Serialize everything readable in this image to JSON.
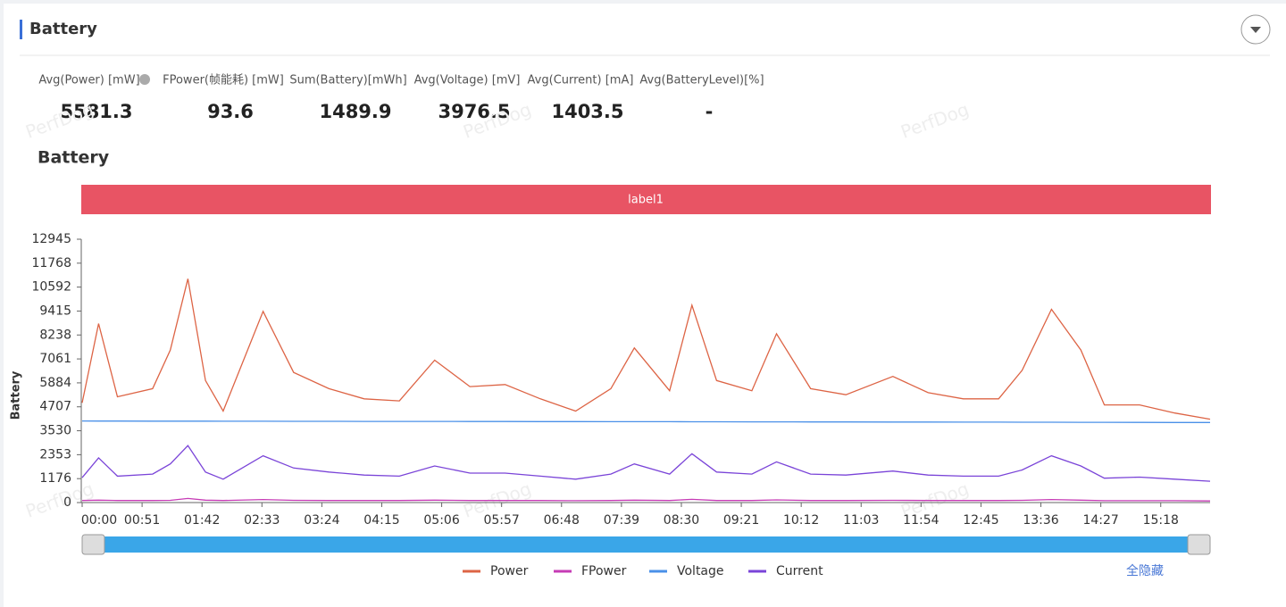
{
  "header": {
    "title": "Battery"
  },
  "stats": [
    {
      "label": "Avg(Power) [mW]",
      "value": 5581.3
    },
    {
      "label": "FPower(帧能耗) [mW]",
      "value": 93.6
    },
    {
      "label": "Sum(Battery)[mWh]",
      "value": 1489.9
    },
    {
      "label": "Avg(Voltage) [mV]",
      "value": 3976.5
    },
    {
      "label": "Avg(Current) [mA]",
      "value": 1403.5
    },
    {
      "label": "Avg(BatteryLevel)[%]",
      "value": "-"
    }
  ],
  "watermark": "PerfDog",
  "hide_all": "全隐藏",
  "chart_data": {
    "type": "line",
    "title": "Battery",
    "band_label": "label1",
    "ylabel": "Battery",
    "xlim": [
      0,
      960
    ],
    "xticks": [
      {
        "value": 0,
        "label": "00:00"
      },
      {
        "value": 51,
        "label": "00:51"
      },
      {
        "value": 102,
        "label": "01:42"
      },
      {
        "value": 153,
        "label": "02:33"
      },
      {
        "value": 204,
        "label": "03:24"
      },
      {
        "value": 255,
        "label": "04:15"
      },
      {
        "value": 306,
        "label": "05:06"
      },
      {
        "value": 357,
        "label": "05:57"
      },
      {
        "value": 408,
        "label": "06:48"
      },
      {
        "value": 459,
        "label": "07:39"
      },
      {
        "value": 510,
        "label": "08:30"
      },
      {
        "value": 561,
        "label": "09:21"
      },
      {
        "value": 612,
        "label": "10:12"
      },
      {
        "value": 663,
        "label": "11:03"
      },
      {
        "value": 714,
        "label": "11:54"
      },
      {
        "value": 765,
        "label": "12:45"
      },
      {
        "value": 816,
        "label": "13:36"
      },
      {
        "value": 867,
        "label": "14:27"
      },
      {
        "value": 918,
        "label": "15:18"
      }
    ],
    "ylim": [
      0,
      12945
    ],
    "yticks": [
      0,
      1176,
      2353,
      3530,
      4707,
      5884,
      7061,
      8238,
      9415,
      10592,
      11768,
      12945
    ],
    "x": [
      0,
      14,
      30,
      60,
      75,
      90,
      105,
      120,
      154,
      180,
      210,
      240,
      270,
      300,
      330,
      360,
      390,
      420,
      450,
      470,
      500,
      519,
      540,
      570,
      591,
      620,
      650,
      690,
      720,
      750,
      780,
      800,
      825,
      850,
      870,
      900,
      930,
      960
    ],
    "series": [
      {
        "name": "Power",
        "color": "#dd6445",
        "values": [
          4900,
          8800,
          5200,
          5600,
          7500,
          11000,
          6000,
          4500,
          9400,
          6400,
          5600,
          5100,
          5000,
          7000,
          5700,
          5800,
          5100,
          4500,
          5600,
          7600,
          5500,
          9700,
          6000,
          5500,
          8300,
          5600,
          5300,
          6200,
          5400,
          5100,
          5100,
          6500,
          9500,
          7500,
          4800,
          4800,
          4400,
          4100
        ]
      },
      {
        "name": "FPower",
        "color": "#c63bb5",
        "values": [
          100,
          120,
          100,
          100,
          110,
          200,
          120,
          100,
          150,
          110,
          100,
          100,
          100,
          120,
          100,
          100,
          100,
          90,
          100,
          120,
          100,
          160,
          100,
          100,
          130,
          100,
          100,
          110,
          100,
          100,
          100,
          110,
          150,
          120,
          90,
          90,
          90,
          80
        ]
      },
      {
        "name": "Voltage",
        "color": "#4a90e8",
        "values": [
          4010,
          4008,
          4006,
          4004,
          4003,
          4002,
          4000,
          3999,
          3997,
          3995,
          3993,
          3991,
          3989,
          3987,
          3985,
          3983,
          3981,
          3979,
          3977,
          3976,
          3974,
          3972,
          3970,
          3968,
          3966,
          3964,
          3962,
          3959,
          3957,
          3955,
          3953,
          3951,
          3949,
          3947,
          3945,
          3942,
          3938,
          3935
        ]
      },
      {
        "name": "Current",
        "color": "#7a44d8",
        "values": [
          1225,
          2200,
          1300,
          1400,
          1900,
          2800,
          1500,
          1150,
          2300,
          1700,
          1500,
          1350,
          1300,
          1800,
          1450,
          1450,
          1300,
          1150,
          1400,
          1900,
          1400,
          2400,
          1500,
          1400,
          2000,
          1400,
          1350,
          1550,
          1350,
          1300,
          1300,
          1600,
          2300,
          1800,
          1200,
          1250,
          1150,
          1050
        ]
      }
    ]
  }
}
